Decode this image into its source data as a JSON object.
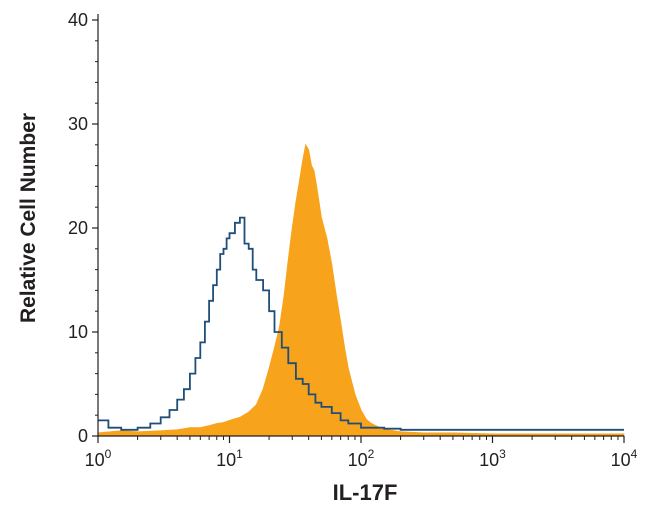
{
  "chart_data": {
    "type": "area",
    "title": "",
    "xlabel": "IL-17F",
    "ylabel": "Relative Cell Number",
    "x_scale": "log",
    "xlim": [
      1,
      10000
    ],
    "ylim": [
      0,
      40
    ],
    "grid": false,
    "legend": "none",
    "x_ticks": [
      {
        "value": 1,
        "base": "10",
        "exp": "0"
      },
      {
        "value": 10,
        "base": "10",
        "exp": "1"
      },
      {
        "value": 100,
        "base": "10",
        "exp": "2"
      },
      {
        "value": 1000,
        "base": "10",
        "exp": "3"
      },
      {
        "value": 10000,
        "base": "10",
        "exp": "4"
      }
    ],
    "y_ticks": [
      "0",
      "10",
      "20",
      "30",
      "40"
    ],
    "series": [
      {
        "style": "filled",
        "color": "#f7a31c",
        "x": [
          1,
          1.5,
          2,
          3,
          4,
          5,
          6,
          7,
          8,
          9,
          10,
          12,
          14,
          16,
          18,
          20,
          22,
          24,
          26,
          28,
          30,
          32,
          34,
          36,
          38,
          40,
          42,
          44,
          46,
          48,
          50,
          55,
          60,
          65,
          70,
          75,
          80,
          90,
          100,
          110,
          120,
          140,
          160,
          200,
          300,
          500,
          1000,
          2000,
          5000,
          10000
        ],
        "y": [
          0.3,
          0.5,
          0.4,
          0.5,
          0.6,
          0.8,
          0.8,
          1,
          1.2,
          1.3,
          1.5,
          1.8,
          2.3,
          3,
          4.5,
          6.5,
          8.5,
          10.5,
          13.5,
          17,
          20,
          22.5,
          24.5,
          26.5,
          28,
          27.5,
          26,
          25.5,
          24,
          22.5,
          21,
          19,
          16.5,
          13.5,
          11,
          8.5,
          6.5,
          4,
          2.5,
          1.6,
          1.2,
          0.8,
          0.6,
          0.4,
          0.3,
          0.3,
          0.2,
          0.2,
          0.2,
          0.2
        ]
      },
      {
        "style": "outline",
        "color": "#1f4e79",
        "x": [
          1,
          1.2,
          1.5,
          2,
          2.5,
          3,
          3.5,
          4,
          4.5,
          5,
          5.5,
          6,
          6.5,
          7,
          7.5,
          8,
          8.5,
          9,
          9.5,
          10,
          11,
          12,
          13,
          14,
          15,
          16,
          18,
          20,
          22,
          25,
          28,
          32,
          36,
          40,
          45,
          50,
          60,
          70,
          80,
          100,
          150,
          200,
          400,
          1000,
          3000,
          10000
        ],
        "y": [
          1.5,
          0.8,
          0.6,
          0.8,
          1.2,
          1.8,
          2.5,
          3.5,
          4.5,
          6,
          7.5,
          9,
          11,
          13,
          14.5,
          16,
          17.5,
          18,
          19,
          19.5,
          20.5,
          21,
          18.5,
          18,
          16,
          15,
          14,
          12,
          10,
          8.5,
          7,
          5.5,
          5,
          4,
          3.2,
          2.8,
          2.2,
          1.5,
          1.2,
          0.8,
          0.7,
          0.6,
          0.6,
          0.6,
          0.6,
          0.6
        ]
      }
    ]
  }
}
